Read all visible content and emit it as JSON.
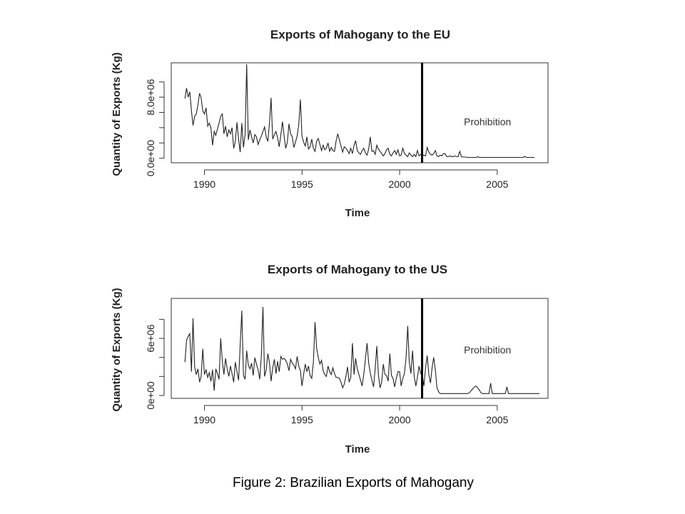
{
  "caption": "Figure 2: Brazilian Exports of Mahogany",
  "chart_data": [
    {
      "type": "line",
      "title": "Exports of Mahogany to the EU",
      "xlabel": "Time",
      "ylabel": "Quantity of Exports (Kg)",
      "xlim": [
        1988.3,
        2007.6
      ],
      "ylim": [
        -600000,
        12500000
      ],
      "x_ticks": [
        1990,
        1995,
        2000,
        2005
      ],
      "x_tick_labels": [
        "1990",
        "1995",
        "2000",
        "2005"
      ],
      "y_ticks": [
        0,
        2000000,
        4000000,
        6000000,
        8000000,
        10000000
      ],
      "y_tick_labels": [
        "0.0e+00",
        "",
        "",
        "",
        "8.0e+06",
        ""
      ],
      "vline_x": 2001.15,
      "annotation": {
        "text": "Prohibition",
        "x": 2004.5,
        "y": 4800000
      },
      "series": [
        {
          "x_start": 1989.0,
          "x_step": 0.0833,
          "values": [
            7800000,
            9200000,
            8000000,
            8700000,
            6200000,
            4300000,
            5500000,
            5800000,
            7000000,
            8500000,
            7900000,
            6200000,
            5800000,
            6600000,
            4200000,
            4600000,
            4000000,
            1700000,
            3500000,
            3000000,
            3800000,
            4600000,
            5500000,
            5800000,
            3200000,
            4200000,
            2800000,
            3700000,
            3200000,
            4000000,
            1300000,
            2200000,
            4700000,
            2500000,
            800000,
            4600000,
            1400000,
            3100000,
            12300000,
            2400000,
            3700000,
            2800000,
            2000000,
            3100000,
            2800000,
            1800000,
            2400000,
            2900000,
            3500000,
            4100000,
            2800000,
            2200000,
            4700000,
            7900000,
            2500000,
            3100000,
            3500000,
            2700000,
            1500000,
            3100000,
            4800000,
            2900000,
            1300000,
            2100000,
            4500000,
            3200000,
            2800000,
            1400000,
            2100000,
            2900000,
            4400000,
            7700000,
            2900000,
            2100000,
            1600000,
            2800000,
            1200000,
            1500000,
            2500000,
            1300000,
            900000,
            2200000,
            2600000,
            1800000,
            1000000,
            1700000,
            1100000,
            1300000,
            2000000,
            900000,
            1400000,
            1000000,
            900000,
            2300000,
            3200000,
            2400000,
            1600000,
            800000,
            1500000,
            1300000,
            1000000,
            600000,
            1300000,
            600000,
            1700000,
            2300000,
            1000000,
            700000,
            500000,
            1000000,
            1300000,
            700000,
            400000,
            1200000,
            2800000,
            900000,
            1000000,
            500000,
            1700000,
            1200000,
            900000,
            600000,
            300000,
            600000,
            1100000,
            1300000,
            500000,
            300000,
            700000,
            1000000,
            500000,
            1100000,
            300000,
            400000,
            1300000,
            600000,
            400000,
            200000,
            700000,
            400000,
            200000,
            500000,
            200000,
            1000000,
            300000,
            500000,
            300000,
            400000,
            300000,
            1400000,
            800000,
            500000,
            400000,
            600000,
            1000000,
            300000,
            200000,
            400000,
            300000,
            600000,
            600000,
            200000,
            200000,
            300000,
            200000,
            200000,
            300000,
            200000,
            200000,
            900000,
            200000,
            150000,
            150000,
            150000,
            100000,
            100000,
            100000,
            100000,
            100000,
            100000,
            200000,
            100000,
            100000,
            100000,
            100000,
            100000,
            100000,
            100000,
            100000,
            100000,
            100000,
            100000,
            100000,
            100000,
            100000,
            100000,
            100000,
            100000,
            100000,
            100000,
            100000,
            100000,
            100000,
            100000,
            100000,
            100000,
            100000,
            100000,
            100000,
            250000,
            100000,
            100000,
            100000,
            100000,
            100000,
            100000
          ]
        }
      ]
    },
    {
      "type": "line",
      "title": "Exports of Mahogany to the US",
      "xlabel": "Time",
      "ylabel": "Quantity of Exports (Kg)",
      "xlim": [
        1988.3,
        2007.6
      ],
      "ylim": [
        -300000,
        10200000
      ],
      "x_ticks": [
        1990,
        1995,
        2000,
        2005
      ],
      "x_tick_labels": [
        "1990",
        "1995",
        "2000",
        "2005"
      ],
      "y_ticks": [
        0,
        2000000,
        4000000,
        6000000,
        8000000
      ],
      "y_tick_labels": [
        "0e+00",
        "",
        "",
        "6e+06",
        ""
      ],
      "vline_x": 2001.15,
      "annotation": {
        "text": "Prohibition",
        "x": 2004.5,
        "y": 4800000
      },
      "series": [
        {
          "x_start": 1989.0,
          "x_step": 0.0833,
          "values": [
            3500000,
            5800000,
            6200000,
            6500000,
            2500000,
            8100000,
            3000000,
            2200000,
            2800000,
            1400000,
            2000000,
            4900000,
            2200000,
            2700000,
            1900000,
            2400000,
            1500000,
            2700000,
            500000,
            2800000,
            2300000,
            1700000,
            6000000,
            3600000,
            2200000,
            3900000,
            2800000,
            2000000,
            3100000,
            2300000,
            1400000,
            3500000,
            2500000,
            1600000,
            5300000,
            8900000,
            2100000,
            1700000,
            4700000,
            3200000,
            2800000,
            3400000,
            2100000,
            4000000,
            3300000,
            2700000,
            1700000,
            4200000,
            9300000,
            2000000,
            2700000,
            4400000,
            3400000,
            1500000,
            2900000,
            3800000,
            2300000,
            3600000,
            2500000,
            4100000,
            3800000,
            3900000,
            3700000,
            3300000,
            2600000,
            3800000,
            3400000,
            3200000,
            2800000,
            4100000,
            3100000,
            2600000,
            1000000,
            2200000,
            3300000,
            2500000,
            3100000,
            2100000,
            1800000,
            3500000,
            7700000,
            5000000,
            4000000,
            3300000,
            3700000,
            2600000,
            2200000,
            2000000,
            3100000,
            2500000,
            2200000,
            2900000,
            2300000,
            1900000,
            1900000,
            1800000,
            1400000,
            800000,
            1200000,
            2000000,
            3000000,
            1400000,
            1900000,
            5500000,
            2200000,
            3900000,
            2800000,
            2200000,
            1600000,
            1000000,
            2200000,
            3800000,
            5500000,
            3400000,
            2400000,
            1600000,
            900000,
            2800000,
            5200000,
            2200000,
            800000,
            1400000,
            3300000,
            2200000,
            2100000,
            1500000,
            4400000,
            2100000,
            1800000,
            900000,
            1800000,
            2500000,
            2500000,
            1000000,
            1800000,
            2300000,
            4000000,
            7300000,
            3500000,
            2300000,
            4700000,
            2000000,
            1000000,
            1900000,
            3100000,
            2300000,
            2100000,
            1000000,
            2900000,
            4200000,
            2200000,
            1300000,
            2900000,
            4000000,
            2700000,
            800000,
            400000,
            200000,
            200000,
            200000,
            200000,
            200000,
            200000,
            200000,
            200000,
            200000,
            200000,
            200000,
            200000,
            200000,
            200000,
            200000,
            200000,
            200000,
            200000,
            300000,
            500000,
            700000,
            900000,
            1000000,
            800000,
            600000,
            300000,
            200000,
            200000,
            200000,
            200000,
            200000,
            1300000,
            200000,
            200000,
            200000,
            200000,
            200000,
            200000,
            200000,
            200000,
            200000,
            900000,
            200000,
            200000,
            200000,
            200000,
            200000,
            200000,
            200000,
            200000,
            200000,
            200000,
            200000,
            200000,
            200000,
            200000,
            200000,
            200000,
            200000,
            200000,
            200000,
            200000
          ]
        }
      ]
    }
  ]
}
